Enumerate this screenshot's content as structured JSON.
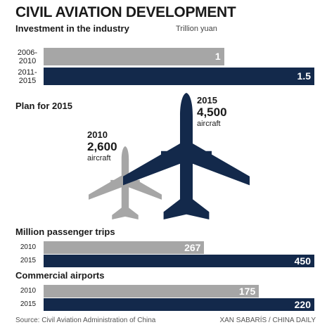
{
  "title": "CIVIL AVIATION DEVELOPMENT",
  "source": "Source: Civil Aviation Administration of China",
  "credit": "XAN SABARÍS / CHINA DAILY",
  "chart_data": [
    {
      "type": "hbar",
      "title": "Investment in the industry",
      "unit": "Trillion yuan",
      "categories": [
        "2006-2010",
        "2011-2015"
      ],
      "values": [
        1,
        1.5
      ],
      "colors": [
        "#a6a6a6",
        "#13294b"
      ],
      "xlim": [
        0,
        1.5
      ]
    },
    {
      "type": "pictogram",
      "title": "Plan for 2015",
      "unit": "aircraft",
      "categories": [
        "2010",
        "2015"
      ],
      "values": [
        2600,
        4500
      ],
      "value_labels": [
        "2,600",
        "4,500"
      ],
      "colors": [
        "#a6a6a6",
        "#13294b"
      ]
    },
    {
      "type": "hbar",
      "title": "Million passenger trips",
      "categories": [
        "2010",
        "2015"
      ],
      "values": [
        267,
        450
      ],
      "colors": [
        "#a6a6a6",
        "#13294b"
      ],
      "xlim": [
        0,
        450
      ]
    },
    {
      "type": "hbar",
      "title": "Commercial airports",
      "categories": [
        "2010",
        "2015"
      ],
      "values": [
        175,
        220
      ],
      "colors": [
        "#a6a6a6",
        "#13294b"
      ],
      "xlim": [
        0,
        220
      ]
    }
  ]
}
